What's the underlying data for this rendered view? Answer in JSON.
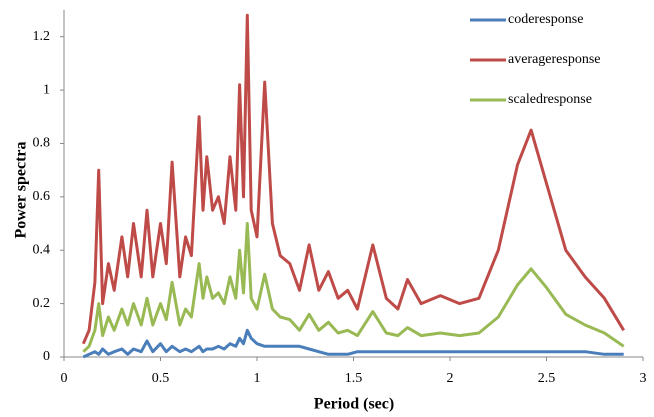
{
  "chart_data": {
    "type": "line",
    "xlabel": "Period (sec)",
    "ylabel": "Power spectra",
    "x": [
      0.1,
      0.13,
      0.16,
      0.18,
      0.2,
      0.23,
      0.26,
      0.3,
      0.33,
      0.36,
      0.4,
      0.43,
      0.46,
      0.5,
      0.53,
      0.56,
      0.6,
      0.63,
      0.66,
      0.7,
      0.72,
      0.74,
      0.77,
      0.8,
      0.83,
      0.86,
      0.89,
      0.91,
      0.93,
      0.95,
      0.97,
      1.0,
      1.04,
      1.08,
      1.12,
      1.17,
      1.22,
      1.27,
      1.32,
      1.37,
      1.42,
      1.47,
      1.52,
      1.6,
      1.67,
      1.73,
      1.78,
      1.85,
      1.95,
      2.05,
      2.15,
      2.25,
      2.35,
      2.42,
      2.5,
      2.6,
      2.7,
      2.8,
      2.9
    ],
    "series": [
      {
        "name": "coderesponse",
        "color": "#4a7ebb",
        "values": [
          0,
          0.01,
          0.02,
          0.01,
          0.03,
          0.01,
          0.02,
          0.03,
          0.01,
          0.03,
          0.02,
          0.06,
          0.02,
          0.05,
          0.02,
          0.04,
          0.02,
          0.03,
          0.02,
          0.04,
          0.02,
          0.03,
          0.03,
          0.04,
          0.03,
          0.05,
          0.04,
          0.07,
          0.05,
          0.1,
          0.07,
          0.05,
          0.04,
          0.04,
          0.04,
          0.04,
          0.04,
          0.03,
          0.02,
          0.01,
          0.01,
          0.01,
          0.02,
          0.02,
          0.02,
          0.02,
          0.02,
          0.02,
          0.02,
          0.02,
          0.02,
          0.02,
          0.02,
          0.02,
          0.02,
          0.02,
          0.02,
          0.01,
          0.01
        ]
      },
      {
        "name": "averageresponse",
        "color": "#be4b48",
        "values": [
          0.05,
          0.1,
          0.28,
          0.7,
          0.2,
          0.35,
          0.25,
          0.45,
          0.3,
          0.5,
          0.3,
          0.55,
          0.3,
          0.5,
          0.35,
          0.73,
          0.3,
          0.45,
          0.38,
          0.9,
          0.55,
          0.75,
          0.55,
          0.6,
          0.5,
          0.75,
          0.55,
          1.02,
          0.6,
          1.28,
          0.55,
          0.45,
          1.03,
          0.5,
          0.38,
          0.35,
          0.25,
          0.42,
          0.25,
          0.32,
          0.22,
          0.25,
          0.18,
          0.42,
          0.22,
          0.18,
          0.29,
          0.2,
          0.23,
          0.2,
          0.22,
          0.4,
          0.72,
          0.85,
          0.65,
          0.4,
          0.3,
          0.22,
          0.1
        ]
      },
      {
        "name": "scaledresponse",
        "color": "#98b954",
        "values": [
          0.02,
          0.04,
          0.1,
          0.2,
          0.08,
          0.15,
          0.1,
          0.18,
          0.12,
          0.2,
          0.12,
          0.22,
          0.12,
          0.2,
          0.14,
          0.28,
          0.12,
          0.18,
          0.15,
          0.35,
          0.22,
          0.3,
          0.22,
          0.24,
          0.2,
          0.3,
          0.22,
          0.4,
          0.24,
          0.5,
          0.22,
          0.18,
          0.31,
          0.18,
          0.15,
          0.14,
          0.1,
          0.16,
          0.1,
          0.13,
          0.09,
          0.1,
          0.08,
          0.17,
          0.09,
          0.08,
          0.11,
          0.08,
          0.09,
          0.08,
          0.09,
          0.15,
          0.27,
          0.33,
          0.26,
          0.16,
          0.12,
          0.09,
          0.04
        ]
      }
    ],
    "xlim": [
      0,
      3
    ],
    "xticks": [
      0,
      0.5,
      1,
      1.5,
      2,
      2.5,
      3
    ],
    "ylim": [
      0,
      1.3
    ],
    "yticks": [
      0,
      0.2,
      0.4,
      0.6,
      0.8,
      1,
      1.2
    ],
    "legend": "upper-right"
  }
}
